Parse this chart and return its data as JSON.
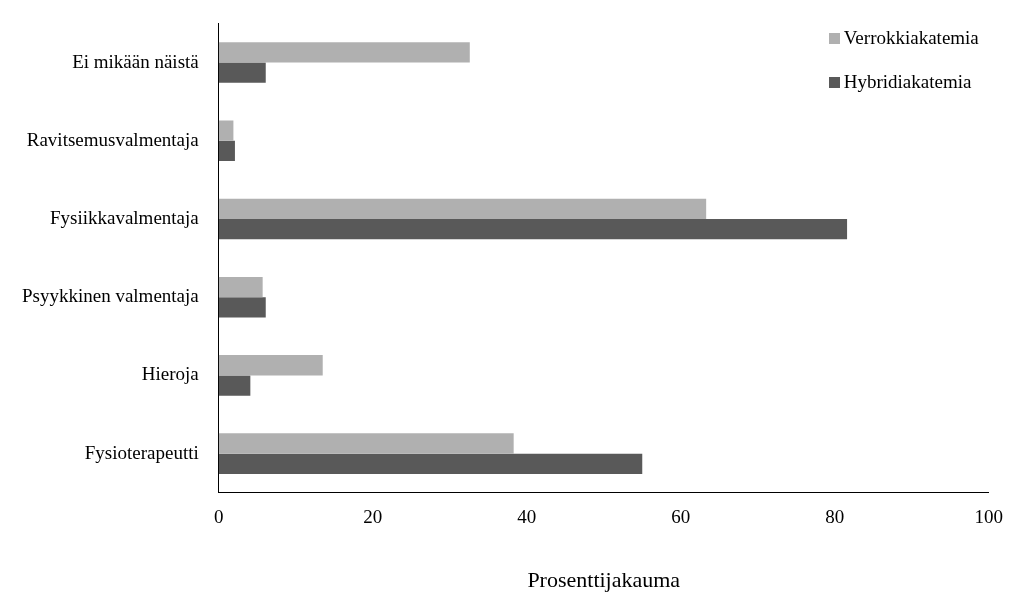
{
  "chart_data": {
    "type": "bar",
    "orientation": "horizontal",
    "xlabel": "Prosenttijakauma",
    "categories": [
      "Ei mikään näistä",
      "Ravitsemusvalmentaja",
      "Fysiikkavalmentaja",
      "Psyykkinen valmentaja",
      "Hieroja",
      "Fysioterapeutti"
    ],
    "series": [
      {
        "name": "Verrokkiakatemia",
        "color": "#b0b0b0",
        "values": [
          32.6,
          1.9,
          63.3,
          5.7,
          13.5,
          38.3
        ]
      },
      {
        "name": "Hybridiakatemia",
        "color": "#595959",
        "values": [
          6.1,
          2.1,
          81.6,
          6.1,
          4.1,
          55.0
        ]
      }
    ],
    "xlim": [
      0,
      100
    ],
    "xticks": [
      0,
      20,
      40,
      60,
      80,
      100
    ],
    "grid": false,
    "legend": "top right"
  }
}
